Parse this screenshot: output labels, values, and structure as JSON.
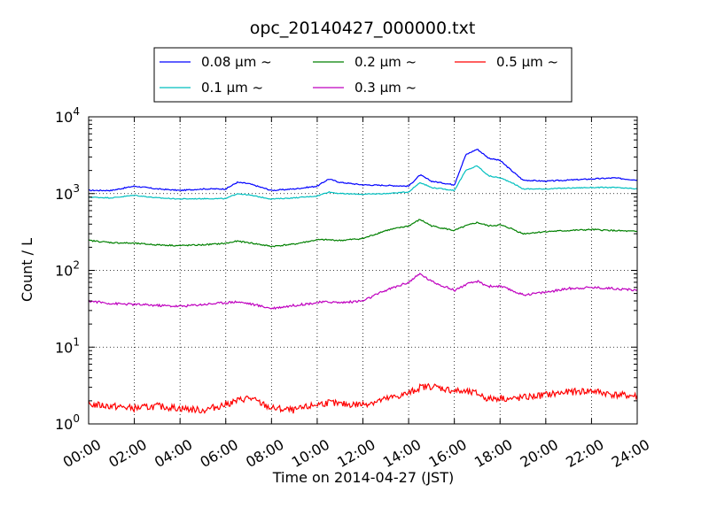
{
  "chart_data": {
    "type": "line",
    "title": "opc_20140427_000000.txt",
    "xlabel": "Time on 2014-04-27 (JST)",
    "ylabel": "Count / L",
    "x_scale": "time",
    "y_scale": "log",
    "xlim": [
      "00:00",
      "24:00"
    ],
    "ylim": [
      1,
      10000
    ],
    "grid": true,
    "legend_placement": "top-center, above plot",
    "x_tick_labels": [
      "00:00",
      "02:00",
      "04:00",
      "06:00",
      "08:00",
      "10:00",
      "12:00",
      "14:00",
      "16:00",
      "18:00",
      "20:00",
      "22:00",
      "24:00"
    ],
    "y_tick_labels": [
      {
        "base": "10",
        "exp": "0"
      },
      {
        "base": "10",
        "exp": "1"
      },
      {
        "base": "10",
        "exp": "2"
      },
      {
        "base": "10",
        "exp": "3"
      },
      {
        "base": "10",
        "exp": "4"
      }
    ],
    "x": [
      "00:00",
      "01:00",
      "02:00",
      "03:00",
      "04:00",
      "05:00",
      "06:00",
      "06:30",
      "07:00",
      "08:00",
      "09:00",
      "10:00",
      "10:30",
      "11:00",
      "12:00",
      "13:00",
      "14:00",
      "14:30",
      "15:00",
      "16:00",
      "16:30",
      "17:00",
      "17:30",
      "18:00",
      "18:30",
      "19:00",
      "20:00",
      "21:00",
      "22:00",
      "23:00",
      "24:00"
    ],
    "series": [
      {
        "name": "0.08 μm ~",
        "color": "#0000ff",
        "values": [
          1100,
          1100,
          1250,
          1150,
          1100,
          1150,
          1150,
          1400,
          1350,
          1100,
          1150,
          1250,
          1550,
          1400,
          1300,
          1280,
          1250,
          1750,
          1450,
          1300,
          3200,
          3800,
          2900,
          2700,
          2000,
          1500,
          1450,
          1500,
          1550,
          1600,
          1500
        ]
      },
      {
        "name": "0.1 μm ~",
        "color": "#00bfbf",
        "values": [
          900,
          880,
          950,
          880,
          850,
          860,
          860,
          1000,
          960,
          850,
          880,
          930,
          1050,
          1000,
          980,
          1000,
          1050,
          1400,
          1200,
          1100,
          2000,
          2300,
          1700,
          1600,
          1400,
          1150,
          1150,
          1180,
          1200,
          1200,
          1150
        ]
      },
      {
        "name": "0.2 μm ~",
        "color": "#008000",
        "values": [
          245,
          230,
          225,
          215,
          210,
          215,
          225,
          240,
          230,
          205,
          220,
          250,
          250,
          245,
          260,
          330,
          380,
          460,
          380,
          330,
          380,
          420,
          380,
          390,
          350,
          300,
          320,
          330,
          340,
          330,
          320
        ]
      },
      {
        "name": "0.3 μm ~",
        "color": "#bf00bf",
        "values": [
          40,
          37,
          36,
          35,
          34,
          36,
          38,
          39,
          37,
          32,
          35,
          38,
          39,
          38,
          40,
          55,
          70,
          90,
          72,
          55,
          65,
          72,
          62,
          62,
          55,
          48,
          52,
          58,
          60,
          58,
          55
        ]
      },
      {
        "name": "0.5 μm ~",
        "color": "#ff0000",
        "values": [
          1.8,
          1.7,
          1.6,
          1.7,
          1.6,
          1.5,
          1.8,
          2.0,
          2.2,
          1.6,
          1.5,
          1.8,
          1.9,
          1.8,
          1.8,
          2.1,
          2.5,
          3.0,
          3.1,
          2.7,
          2.6,
          2.5,
          2.1,
          2.2,
          2.1,
          2.2,
          2.4,
          2.6,
          2.7,
          2.4,
          2.3
        ]
      }
    ]
  }
}
